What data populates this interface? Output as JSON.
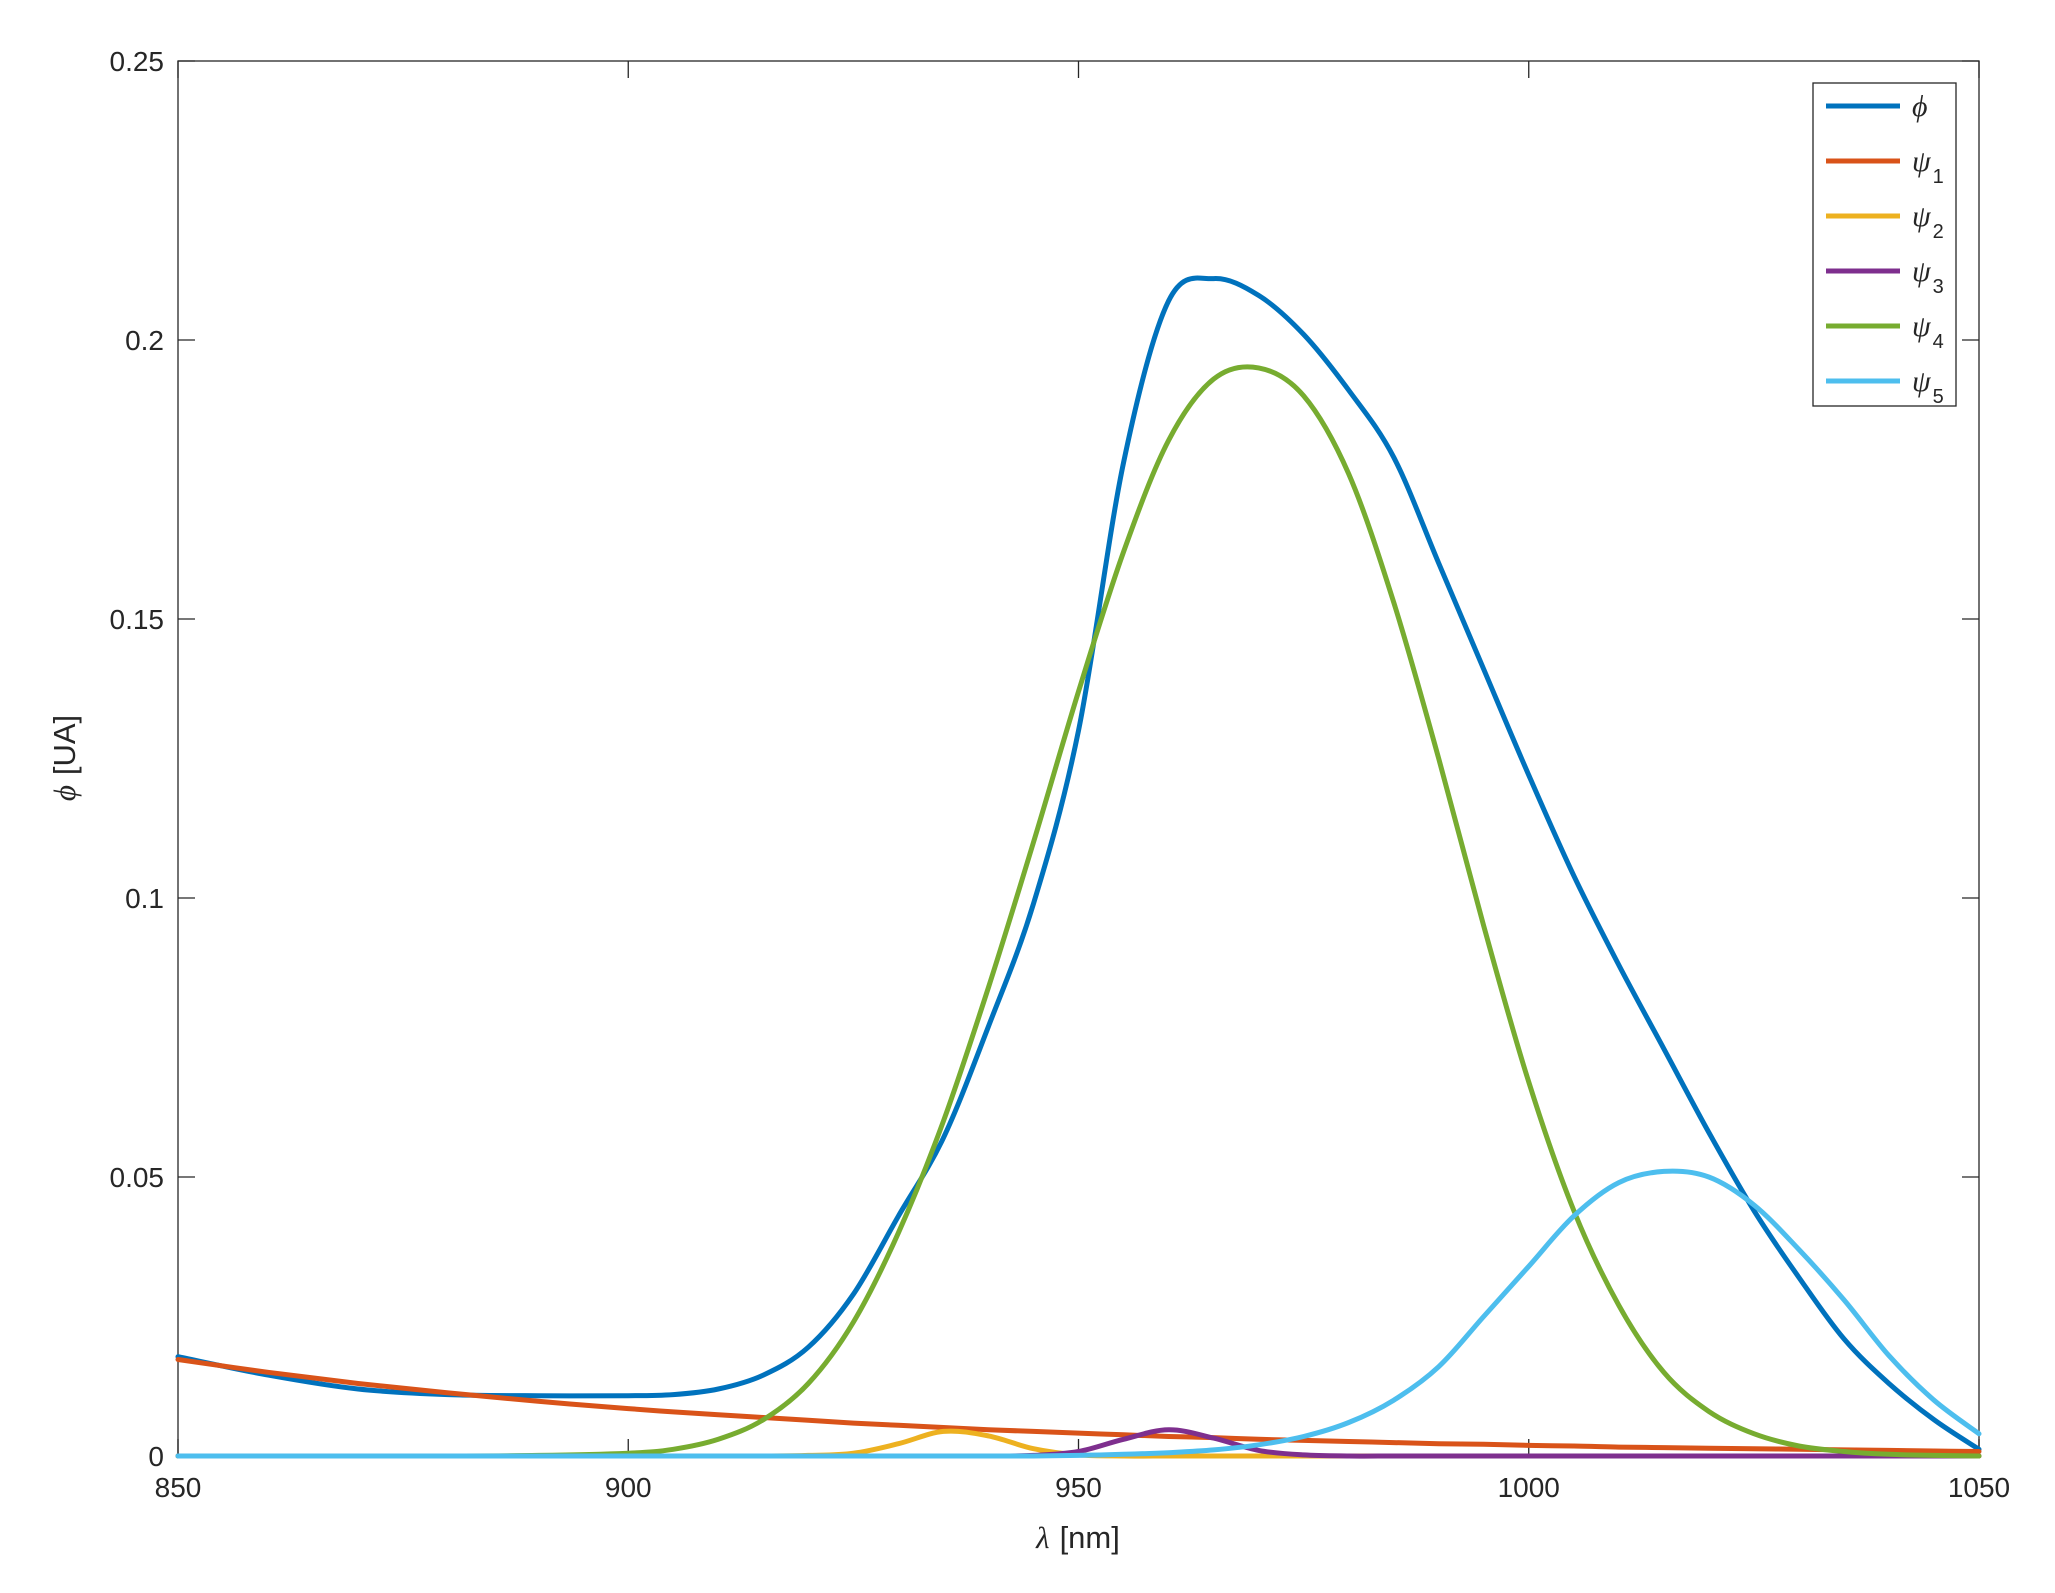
{
  "chart_data": {
    "type": "line",
    "xlabel": "λ [nm]",
    "xlabel_symbol": "λ",
    "xlabel_unit": "[nm]",
    "ylabel": "ϕ [UA]",
    "ylabel_symbol": "ϕ",
    "ylabel_unit": "[UA]",
    "xlim": [
      850,
      1050
    ],
    "ylim": [
      0,
      0.25
    ],
    "xticks": [
      "850",
      "900",
      "950",
      "1000",
      "1050"
    ],
    "yticks": [
      "0",
      "0.05",
      "0.1",
      "0.15",
      "0.2",
      "0.25"
    ],
    "grid": false,
    "legend_position": "top-right",
    "x": [
      850,
      860,
      870,
      880,
      890,
      900,
      905,
      910,
      915,
      920,
      925,
      930,
      935,
      940,
      945,
      950,
      955,
      960,
      965,
      970,
      975,
      980,
      985,
      990,
      995,
      1000,
      1005,
      1010,
      1015,
      1020,
      1025,
      1030,
      1035,
      1040,
      1045,
      1050
    ],
    "series": [
      {
        "name": "ϕ",
        "symbol": "ϕ",
        "subscript": "",
        "color": "#0072BD",
        "values": [
          0.0178,
          0.0145,
          0.012,
          0.011,
          0.0108,
          0.0108,
          0.011,
          0.012,
          0.0145,
          0.0195,
          0.029,
          0.043,
          0.057,
          0.077,
          0.099,
          0.13,
          0.178,
          0.207,
          0.211,
          0.208,
          0.201,
          0.191,
          0.179,
          0.16,
          0.141,
          0.122,
          0.104,
          0.088,
          0.073,
          0.058,
          0.044,
          0.032,
          0.021,
          0.013,
          0.0065,
          0.0012
        ]
      },
      {
        "name": "ψ1",
        "symbol": "ψ",
        "subscript": "1",
        "color": "#D95319",
        "values": [
          0.0173,
          0.015,
          0.013,
          0.0113,
          0.0098,
          0.0085,
          0.0079,
          0.0074,
          0.0069,
          0.0064,
          0.0059,
          0.0055,
          0.0051,
          0.0047,
          0.0044,
          0.0041,
          0.0038,
          0.0035,
          0.0033,
          0.003,
          0.0028,
          0.0026,
          0.0024,
          0.0022,
          0.0021,
          0.0019,
          0.0018,
          0.0016,
          0.0015,
          0.0014,
          0.0013,
          0.0012,
          0.0011,
          0.001,
          0.0009,
          0.0008
        ]
      },
      {
        "name": "ψ2",
        "symbol": "ψ",
        "subscript": "2",
        "color": "#EDB120",
        "values": [
          0,
          0,
          0,
          0,
          0,
          0,
          0,
          0,
          0,
          0.0001,
          0.0005,
          0.0022,
          0.0044,
          0.0036,
          0.0013,
          0.0002,
          0,
          0,
          0,
          0,
          0,
          0,
          0,
          0,
          0,
          0,
          0,
          0,
          0,
          0,
          0,
          0,
          0,
          0,
          0,
          0
        ]
      },
      {
        "name": "ψ3",
        "symbol": "ψ",
        "subscript": "3",
        "color": "#7E2F8E",
        "values": [
          0,
          0,
          0,
          0,
          0,
          0,
          0,
          0,
          0,
          0,
          0,
          0,
          0,
          0,
          0.0001,
          0.0008,
          0.003,
          0.0047,
          0.0032,
          0.001,
          0.0002,
          0,
          0,
          0,
          0,
          0,
          0,
          0,
          0,
          0,
          0,
          0,
          0,
          0,
          0,
          0
        ]
      },
      {
        "name": "ψ4",
        "symbol": "ψ",
        "subscript": "4",
        "color": "#77AC30",
        "values": [
          0,
          0,
          0,
          0,
          0.0001,
          0.0005,
          0.0012,
          0.003,
          0.0065,
          0.013,
          0.024,
          0.04,
          0.06,
          0.084,
          0.11,
          0.137,
          0.162,
          0.182,
          0.193,
          0.195,
          0.19,
          0.176,
          0.153,
          0.125,
          0.095,
          0.067,
          0.044,
          0.027,
          0.015,
          0.008,
          0.004,
          0.0018,
          0.0008,
          0.0003,
          0.0001,
          0
        ]
      },
      {
        "name": "ψ5",
        "symbol": "ψ",
        "subscript": "5",
        "color": "#4DBEEE",
        "values": [
          0,
          0,
          0,
          0,
          0,
          0,
          0,
          0,
          0,
          0,
          0,
          0,
          0,
          0,
          0,
          0.0001,
          0.0003,
          0.0006,
          0.0011,
          0.002,
          0.0035,
          0.006,
          0.01,
          0.016,
          0.025,
          0.034,
          0.043,
          0.049,
          0.051,
          0.05,
          0.045,
          0.037,
          0.028,
          0.018,
          0.01,
          0.004
        ]
      }
    ]
  }
}
